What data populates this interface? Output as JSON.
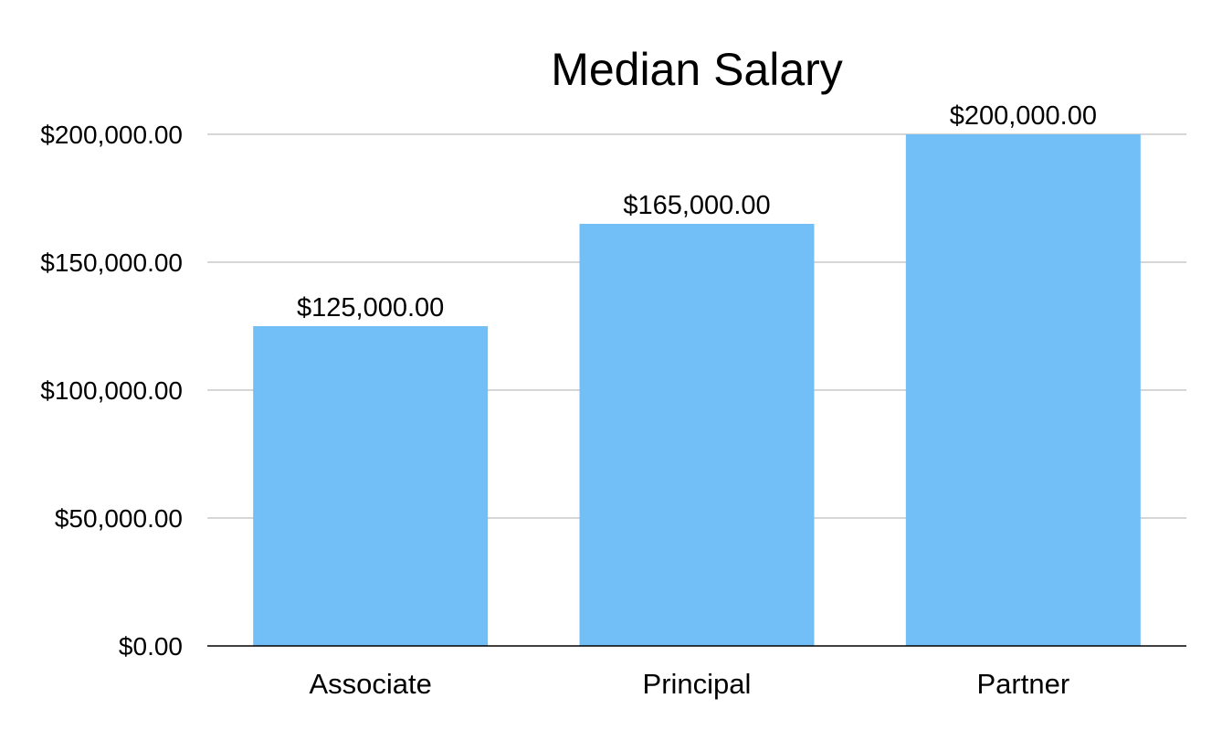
{
  "chart_data": {
    "type": "bar",
    "title": "Median Salary",
    "xlabel": "",
    "ylabel": "",
    "categories": [
      "Associate",
      "Principal",
      "Partner"
    ],
    "values": [
      125000,
      165000,
      200000
    ],
    "data_labels": [
      "$125,000.00",
      "$165,000.00",
      "$200,000.00"
    ],
    "ylim": [
      0,
      200000
    ],
    "y_ticks": [
      0,
      50000,
      100000,
      150000,
      200000
    ],
    "y_tick_labels": [
      "$0.00",
      "$50,000.00",
      "$100,000.00",
      "$150,000.00",
      "$200,000.00"
    ],
    "grid": true,
    "legend": "none",
    "colors": {
      "bar": "#72bff8",
      "grid": "#c8c8c8",
      "axis": "#000000",
      "text": "#000000"
    }
  }
}
